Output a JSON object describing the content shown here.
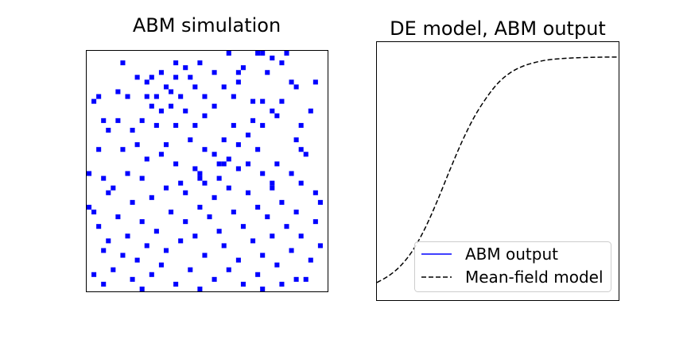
{
  "left_panel": {
    "title": "ABM simulation"
  },
  "right_panel": {
    "title": "DE model, ABM output",
    "legend": {
      "abm_label": "ABM output",
      "model_label": "Mean-field model"
    }
  },
  "colors": {
    "agent": "#0000ff",
    "abm_line": "#0000ff",
    "model_line": "#000000",
    "frame": "#000000"
  },
  "chart_data": [
    {
      "type": "heatmap",
      "title": "ABM simulation",
      "grid_size": [
        50,
        50
      ],
      "value_colors": {
        "0": "#ffffff",
        "1": "#0000ff"
      },
      "occupied_cells": [
        [
          29,
          0
        ],
        [
          35,
          0
        ],
        [
          36,
          0
        ],
        [
          41,
          0
        ],
        [
          38,
          1
        ],
        [
          18,
          2
        ],
        [
          23,
          2
        ],
        [
          40,
          2
        ],
        [
          20,
          3
        ],
        [
          32,
          3
        ],
        [
          26,
          4
        ],
        [
          31,
          4
        ],
        [
          15,
          4
        ],
        [
          13,
          5
        ],
        [
          37,
          4
        ],
        [
          10,
          5
        ],
        [
          18,
          5
        ],
        [
          21,
          5
        ],
        [
          12,
          6
        ],
        [
          31,
          6
        ],
        [
          42,
          6
        ],
        [
          16,
          7
        ],
        [
          22,
          7
        ],
        [
          28,
          7
        ],
        [
          43,
          7
        ],
        [
          6,
          8
        ],
        [
          2,
          9
        ],
        [
          8,
          9
        ],
        [
          12,
          9
        ],
        [
          14,
          9
        ],
        [
          17,
          8
        ],
        [
          19,
          9
        ],
        [
          24,
          9
        ],
        [
          30,
          9
        ],
        [
          34,
          10
        ],
        [
          36,
          10
        ],
        [
          40,
          10
        ],
        [
          26,
          11
        ],
        [
          13,
          11
        ],
        [
          17,
          11
        ],
        [
          38,
          12
        ],
        [
          15,
          12
        ],
        [
          20,
          12
        ],
        [
          39,
          13
        ],
        [
          24,
          13
        ],
        [
          3,
          14
        ],
        [
          6,
          14
        ],
        [
          11,
          14
        ],
        [
          14,
          15
        ],
        [
          18,
          15
        ],
        [
          22,
          15
        ],
        [
          30,
          15
        ],
        [
          34,
          14
        ],
        [
          36,
          15
        ],
        [
          44,
          15
        ],
        [
          4,
          16
        ],
        [
          9,
          16
        ],
        [
          33,
          17
        ],
        [
          21,
          18
        ],
        [
          28,
          18
        ],
        [
          43,
          18
        ],
        [
          16,
          19
        ],
        [
          31,
          19
        ],
        [
          10,
          19
        ],
        [
          2,
          20
        ],
        [
          7,
          20
        ],
        [
          24,
          20
        ],
        [
          35,
          20
        ],
        [
          15,
          21
        ],
        [
          26,
          21
        ],
        [
          45,
          21
        ],
        [
          29,
          22
        ],
        [
          12,
          22
        ],
        [
          33,
          23
        ],
        [
          39,
          23
        ],
        [
          18,
          23
        ],
        [
          22,
          24
        ],
        [
          31,
          24
        ],
        [
          36,
          25
        ],
        [
          42,
          25
        ],
        [
          8,
          25
        ],
        [
          27,
          26
        ],
        [
          3,
          26
        ],
        [
          11,
          26
        ],
        [
          19,
          27
        ],
        [
          24,
          27
        ],
        [
          38,
          27
        ],
        [
          44,
          27
        ],
        [
          5,
          28
        ],
        [
          16,
          28
        ],
        [
          29,
          28
        ],
        [
          20,
          29
        ],
        [
          33,
          29
        ],
        [
          4,
          29
        ],
        [
          13,
          30
        ],
        [
          26,
          30
        ],
        [
          40,
          31
        ],
        [
          9,
          31
        ],
        [
          23,
          32
        ],
        [
          35,
          32
        ],
        [
          1,
          33
        ],
        [
          17,
          33
        ],
        [
          30,
          33
        ],
        [
          43,
          33
        ],
        [
          6,
          34
        ],
        [
          25,
          34
        ],
        [
          37,
          34
        ],
        [
          11,
          35
        ],
        [
          20,
          35
        ],
        [
          2,
          36
        ],
        [
          32,
          36
        ],
        [
          41,
          36
        ],
        [
          14,
          37
        ],
        [
          27,
          37
        ],
        [
          8,
          38
        ],
        [
          22,
          38
        ],
        [
          38,
          38
        ],
        [
          44,
          38
        ],
        [
          4,
          39
        ],
        [
          19,
          39
        ],
        [
          34,
          39
        ],
        [
          12,
          40
        ],
        [
          28,
          40
        ],
        [
          3,
          41
        ],
        [
          16,
          41
        ],
        [
          42,
          41
        ],
        [
          7,
          42
        ],
        [
          24,
          42
        ],
        [
          36,
          42
        ],
        [
          10,
          43
        ],
        [
          31,
          43
        ],
        [
          46,
          43
        ],
        [
          15,
          44
        ],
        [
          39,
          44
        ],
        [
          5,
          45
        ],
        [
          21,
          45
        ],
        [
          29,
          45
        ],
        [
          1,
          46
        ],
        [
          13,
          46
        ],
        [
          35,
          46
        ],
        [
          26,
          47
        ],
        [
          9,
          47
        ],
        [
          43,
          47
        ],
        [
          18,
          48
        ],
        [
          32,
          48
        ],
        [
          3,
          48
        ],
        [
          40,
          48
        ],
        [
          23,
          49
        ],
        [
          11,
          49
        ],
        [
          36,
          49
        ],
        [
          47,
          29
        ],
        [
          48,
          31
        ],
        [
          47,
          35
        ],
        [
          48,
          40
        ],
        [
          46,
          12
        ],
        [
          47,
          6
        ],
        [
          45,
          47
        ],
        [
          44,
          20
        ],
        [
          0,
          25
        ],
        [
          0,
          32
        ],
        [
          1,
          10
        ],
        [
          7,
          2
        ],
        [
          27,
          23
        ],
        [
          28,
          23
        ],
        [
          23,
          25
        ],
        [
          23,
          26
        ],
        [
          38,
          28
        ]
      ]
    },
    {
      "type": "line",
      "title": "DE model, ABM output",
      "xlim": [
        0,
        1
      ],
      "ylim": [
        0,
        1
      ],
      "series": [
        {
          "name": "ABM output",
          "style": "solid",
          "x": [],
          "y": []
        },
        {
          "name": "Mean-field model",
          "style": "dashed",
          "x": [
            0,
            0.05,
            0.1,
            0.15,
            0.2,
            0.25,
            0.3,
            0.35,
            0.4,
            0.45,
            0.5,
            0.55,
            0.6,
            0.65,
            0.7,
            0.75,
            0.8,
            0.85,
            0.9,
            0.95,
            1.0
          ],
          "y": [
            0.068,
            0.095,
            0.135,
            0.195,
            0.28,
            0.385,
            0.5,
            0.61,
            0.705,
            0.78,
            0.84,
            0.88,
            0.905,
            0.92,
            0.93,
            0.935,
            0.938,
            0.94,
            0.941,
            0.942,
            0.942
          ]
        }
      ],
      "legend": "lower-right"
    }
  ]
}
